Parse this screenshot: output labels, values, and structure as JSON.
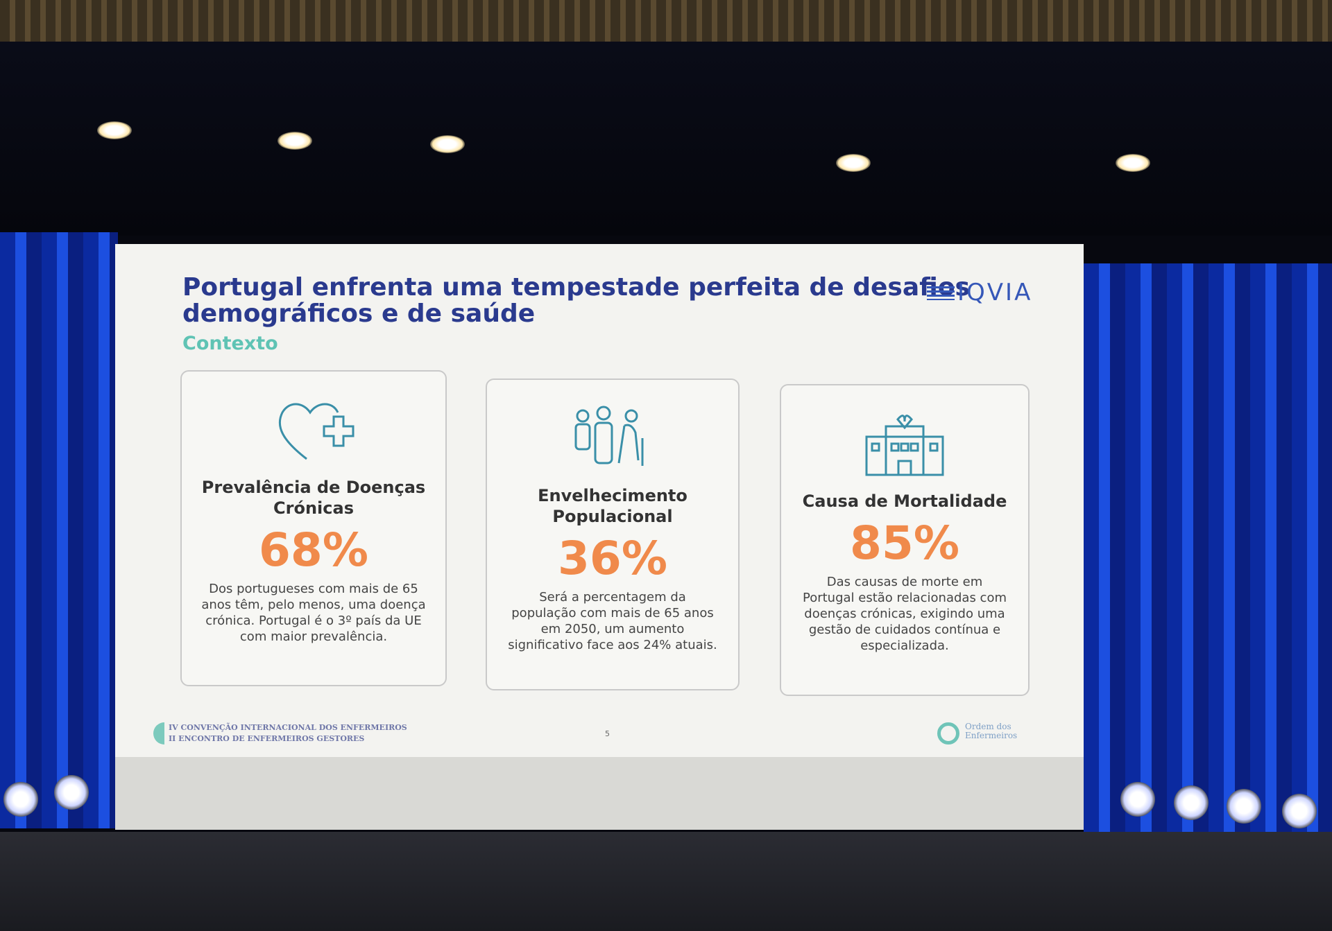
{
  "slide": {
    "title": "Portugal enfrenta uma tempestade perfeita de desafios demográficos e de saúde",
    "subtitle": "Contexto",
    "logo": "IQVIA",
    "cards": [
      {
        "icon": "heart-plus-icon",
        "heading": "Prevalência de Doenças Crónicas",
        "value": "68%",
        "text": "Dos portugueses com mais de 65 anos têm, pelo menos, uma doença crónica. Portugal é o 3º país da UE com maior prevalência."
      },
      {
        "icon": "elderly-family-icon",
        "heading": "Envelhecimento Populacional",
        "value": "36%",
        "text": "Será a percentagem da população com mais de 65 anos em 2050, um aumento significativo face aos 24% atuais."
      },
      {
        "icon": "hospital-icon",
        "heading": "Causa de Mortalidade",
        "value": "85%",
        "text": "Das causas de morte em Portugal estão relacionadas com doenças crónicas, exigindo uma gestão de cuidados contínua e especializada."
      }
    ],
    "footer": {
      "line1": "IV CONVENÇÃO INTERNACIONAL DOS ENFERMEIROS",
      "line2": "II ENCONTRO DE ENFERMEIROS GESTORES",
      "page": "5",
      "org_line1": "Ordem dos",
      "org_line2": "Enfermeiros"
    }
  },
  "colors": {
    "title": "#2a3a8e",
    "accent_teal": "#5fc3b4",
    "value_orange": "#f08a4b",
    "curtain_blue": "#1c4fe0"
  }
}
